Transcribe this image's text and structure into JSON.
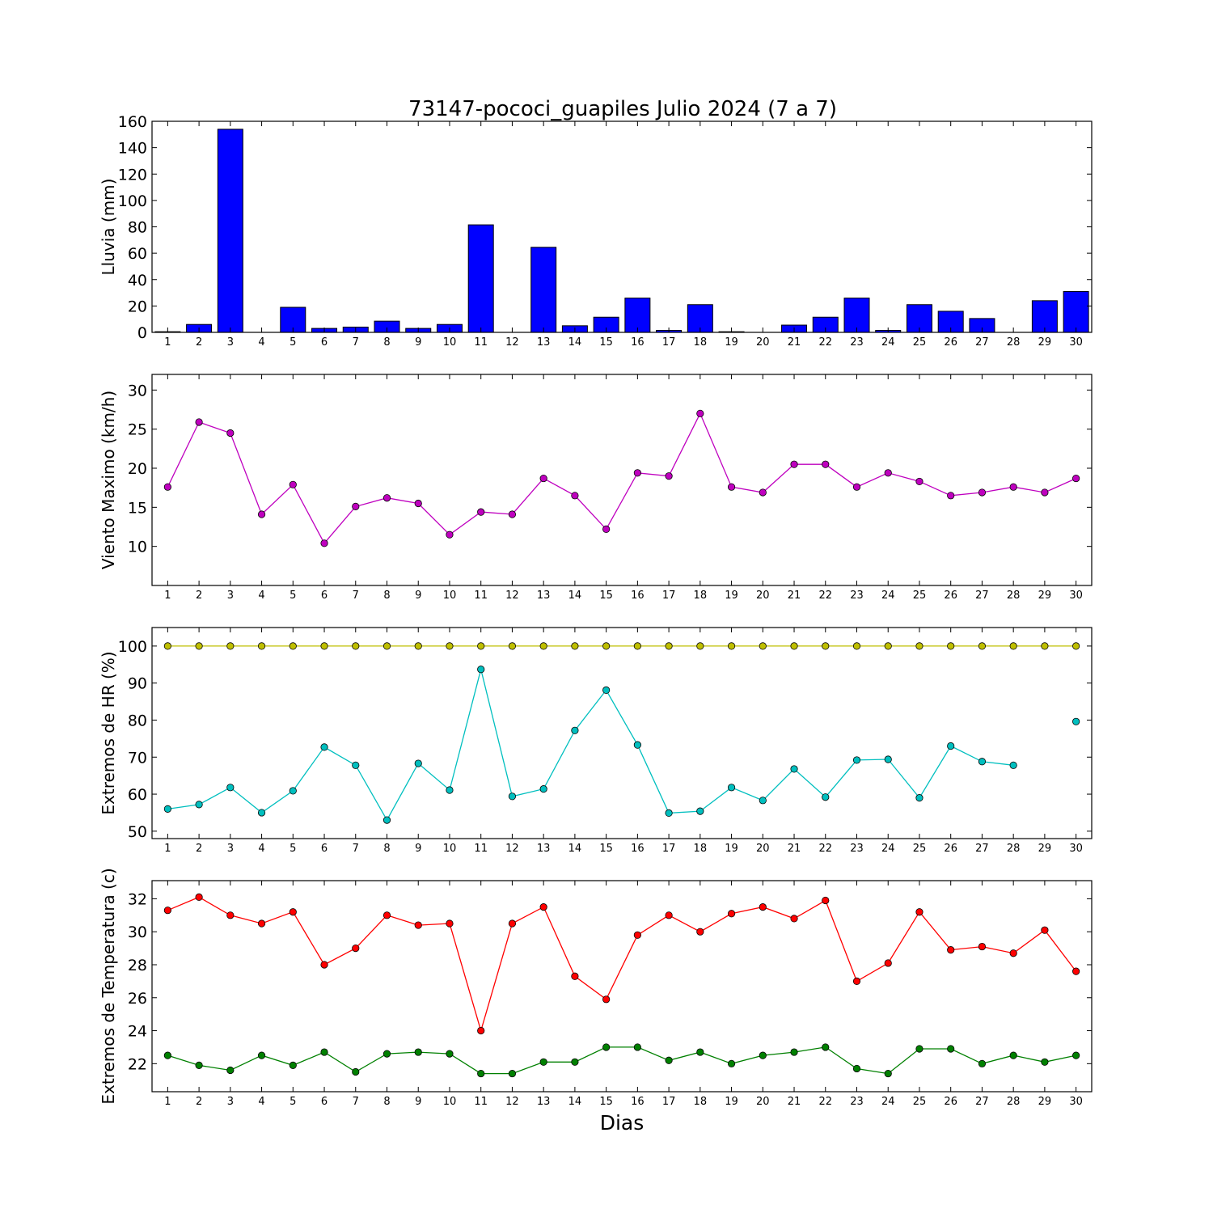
{
  "title": "73147-pococi_guapiles Julio 2024  (7 a 7)",
  "xlabel": "Dias",
  "chart_data": [
    {
      "type": "bar",
      "ylabel": "Lluvia (mm)",
      "x": [
        1,
        2,
        3,
        4,
        5,
        6,
        7,
        8,
        9,
        10,
        11,
        12,
        13,
        14,
        15,
        16,
        17,
        18,
        19,
        20,
        21,
        22,
        23,
        24,
        25,
        26,
        27,
        28,
        29,
        30
      ],
      "series": [
        {
          "color": "#0000ff",
          "values": [
            0.5,
            6,
            154,
            0,
            19,
            3,
            4,
            8.5,
            3,
            6,
            81.5,
            0,
            64.5,
            5,
            11.5,
            26,
            1.5,
            21,
            0.5,
            0,
            5.5,
            11.5,
            26,
            1.5,
            21,
            16,
            10.5,
            0,
            24,
            31
          ]
        }
      ],
      "ylim": [
        0,
        160
      ],
      "yticks": [
        0,
        20,
        40,
        60,
        80,
        100,
        120,
        140,
        160
      ]
    },
    {
      "type": "line",
      "ylabel": "Viento Maximo (km/h)",
      "x": [
        1,
        2,
        3,
        4,
        5,
        6,
        7,
        8,
        9,
        10,
        11,
        12,
        13,
        14,
        15,
        16,
        17,
        18,
        19,
        20,
        21,
        22,
        23,
        24,
        25,
        26,
        27,
        28,
        29,
        30
      ],
      "series": [
        {
          "color": "#bf00bf",
          "values": [
            17.6,
            25.9,
            24.5,
            14.1,
            17.9,
            10.4,
            15.1,
            16.2,
            15.5,
            11.5,
            14.4,
            14.1,
            18.7,
            16.5,
            12.2,
            19.4,
            19.0,
            27.0,
            17.6,
            16.9,
            20.5,
            20.5,
            17.6,
            19.4,
            18.3,
            16.5,
            16.9,
            17.6,
            16.9,
            18.7
          ]
        }
      ],
      "ylim": [
        5,
        32
      ],
      "yticks": [
        10,
        15,
        20,
        25,
        30
      ]
    },
    {
      "type": "line",
      "ylabel": "Extremos de HR (%)",
      "x": [
        1,
        2,
        3,
        4,
        5,
        6,
        7,
        8,
        9,
        10,
        11,
        12,
        13,
        14,
        15,
        16,
        17,
        18,
        19,
        20,
        21,
        22,
        23,
        24,
        25,
        26,
        27,
        28,
        29,
        30
      ],
      "series": [
        {
          "color": "#bfbf00",
          "values": [
            100,
            100,
            100,
            100,
            100,
            100,
            100,
            100,
            100,
            100,
            100,
            100,
            100,
            100,
            100,
            100,
            100,
            100,
            100,
            100,
            100,
            100,
            100,
            100,
            100,
            100,
            100,
            100,
            100,
            100
          ]
        },
        {
          "color": "#00bfbf",
          "values": [
            56,
            57.2,
            61.8,
            55,
            60.9,
            72.7,
            67.8,
            53,
            68.3,
            61.1,
            93.7,
            59.4,
            61.4,
            77.2,
            88.1,
            73.3,
            54.9,
            55.4,
            61.8,
            58.3,
            66.8,
            59.2,
            69.2,
            69.4,
            59,
            73,
            68.8,
            67.8,
            null,
            79.6
          ]
        }
      ],
      "ylim": [
        48,
        105
      ],
      "yticks": [
        50,
        60,
        70,
        80,
        90,
        100
      ]
    },
    {
      "type": "line",
      "ylabel": "Extremos de Temperatura (c)",
      "x": [
        1,
        2,
        3,
        4,
        5,
        6,
        7,
        8,
        9,
        10,
        11,
        12,
        13,
        14,
        15,
        16,
        17,
        18,
        19,
        20,
        21,
        22,
        23,
        24,
        25,
        26,
        27,
        28,
        29,
        30
      ],
      "series": [
        {
          "color": "#ff0000",
          "values": [
            31.3,
            32.1,
            31.0,
            30.5,
            31.2,
            28.0,
            29.0,
            31.0,
            30.4,
            30.5,
            24.0,
            30.5,
            31.5,
            27.3,
            25.9,
            29.8,
            31.0,
            30.0,
            31.1,
            31.5,
            30.8,
            31.9,
            27.0,
            28.1,
            31.2,
            28.9,
            29.1,
            28.7,
            30.1,
            27.6
          ]
        },
        {
          "color": "#008000",
          "values": [
            22.5,
            21.9,
            21.6,
            22.5,
            21.9,
            22.7,
            21.5,
            22.6,
            22.7,
            22.6,
            21.4,
            21.4,
            22.1,
            22.1,
            23.0,
            23.0,
            22.2,
            22.7,
            22.0,
            22.5,
            22.7,
            23.0,
            21.7,
            21.4,
            22.9,
            22.9,
            22.0,
            22.5,
            22.1,
            22.5
          ]
        }
      ],
      "ylim": [
        20.3,
        33.1
      ],
      "yticks": [
        22,
        24,
        26,
        28,
        30,
        32
      ]
    }
  ]
}
